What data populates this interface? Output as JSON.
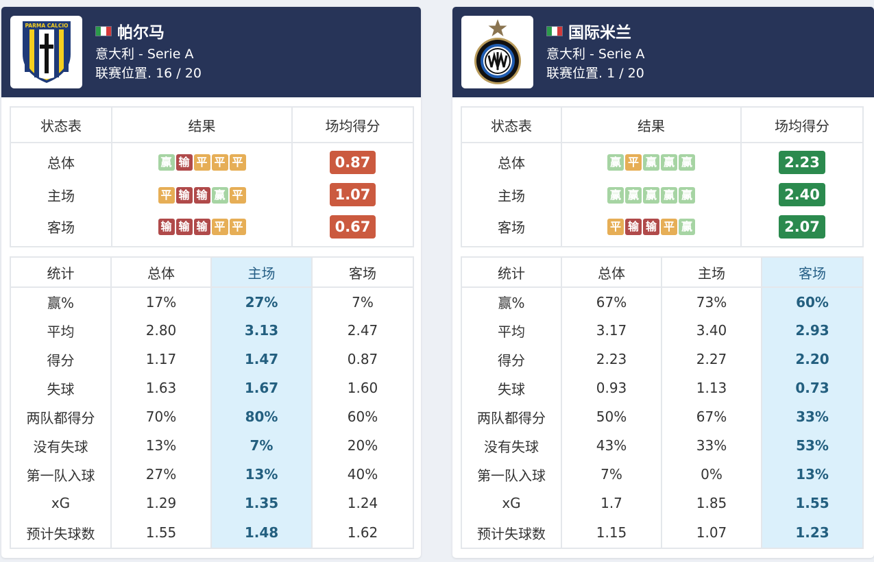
{
  "colors": {
    "header_bg": "#273458",
    "win": "#a6d4a3",
    "loss": "#b04a4a",
    "draw": "#e6ae56",
    "ppg_bad": "#cb5a3f",
    "ppg_good": "#2b8a4e",
    "highlight_col": "#dbf0fb"
  },
  "left": {
    "team_name": "帕尔马",
    "league": "意大利 - Serie A",
    "position": "联赛位置. 16 / 20",
    "flag_icon": "italy-flag-icon",
    "logo_icon": "parma-crest-icon",
    "logo_text": "PARMA CALCIO",
    "form_headers": [
      "状态表",
      "结果",
      "场均得分"
    ],
    "form_rows": [
      {
        "label": "总体",
        "results": [
          "赢",
          "输",
          "平",
          "平",
          "平"
        ],
        "ppg": "0.87",
        "ppg_color": "#cb5a3f"
      },
      {
        "label": "主场",
        "results": [
          "平",
          "输",
          "输",
          "赢",
          "平"
        ],
        "ppg": "1.07",
        "ppg_color": "#cb5a3f"
      },
      {
        "label": "客场",
        "results": [
          "输",
          "输",
          "输",
          "平",
          "平"
        ],
        "ppg": "0.67",
        "ppg_color": "#cb5a3f"
      }
    ],
    "stats_headers": [
      "统计",
      "总体",
      "主场",
      "客场"
    ],
    "highlight_column": 2,
    "stats_rows": [
      {
        "label": "赢%",
        "values": [
          "17%",
          "27%",
          "7%"
        ]
      },
      {
        "label": "平均",
        "values": [
          "2.80",
          "3.13",
          "2.47"
        ]
      },
      {
        "label": "得分",
        "values": [
          "1.17",
          "1.47",
          "0.87"
        ]
      },
      {
        "label": "失球",
        "values": [
          "1.63",
          "1.67",
          "1.60"
        ]
      },
      {
        "label": "两队都得分",
        "values": [
          "70%",
          "80%",
          "60%"
        ]
      },
      {
        "label": "没有失球",
        "values": [
          "13%",
          "7%",
          "20%"
        ]
      },
      {
        "label": "第一队入球",
        "values": [
          "27%",
          "13%",
          "40%"
        ]
      },
      {
        "label": "xG",
        "values": [
          "1.29",
          "1.35",
          "1.24"
        ]
      },
      {
        "label": "预计失球数",
        "values": [
          "1.55",
          "1.48",
          "1.62"
        ]
      }
    ]
  },
  "right": {
    "team_name": "国际米兰",
    "league": "意大利 - Serie A",
    "position": "联赛位置. 1 / 20",
    "flag_icon": "italy-flag-icon",
    "logo_icon": "inter-crest-icon",
    "form_headers": [
      "状态表",
      "结果",
      "场均得分"
    ],
    "form_rows": [
      {
        "label": "总体",
        "results": [
          "赢",
          "平",
          "赢",
          "赢",
          "赢"
        ],
        "ppg": "2.23",
        "ppg_color": "#2b8a4e"
      },
      {
        "label": "主场",
        "results": [
          "赢",
          "赢",
          "赢",
          "赢",
          "赢"
        ],
        "ppg": "2.40",
        "ppg_color": "#2b8a4e"
      },
      {
        "label": "客场",
        "results": [
          "平",
          "输",
          "输",
          "平",
          "赢"
        ],
        "ppg": "2.07",
        "ppg_color": "#2b8a4e"
      }
    ],
    "stats_headers": [
      "统计",
      "总体",
      "主场",
      "客场"
    ],
    "highlight_column": 3,
    "stats_rows": [
      {
        "label": "赢%",
        "values": [
          "67%",
          "73%",
          "60%"
        ]
      },
      {
        "label": "平均",
        "values": [
          "3.17",
          "3.40",
          "2.93"
        ]
      },
      {
        "label": "得分",
        "values": [
          "2.23",
          "2.27",
          "2.20"
        ]
      },
      {
        "label": "失球",
        "values": [
          "0.93",
          "1.13",
          "0.73"
        ]
      },
      {
        "label": "两队都得分",
        "values": [
          "50%",
          "67%",
          "33%"
        ]
      },
      {
        "label": "没有失球",
        "values": [
          "43%",
          "33%",
          "53%"
        ]
      },
      {
        "label": "第一队入球",
        "values": [
          "7%",
          "0%",
          "13%"
        ]
      },
      {
        "label": "xG",
        "values": [
          "1.7",
          "1.85",
          "1.55"
        ]
      },
      {
        "label": "预计失球数",
        "values": [
          "1.15",
          "1.07",
          "1.23"
        ]
      }
    ]
  }
}
